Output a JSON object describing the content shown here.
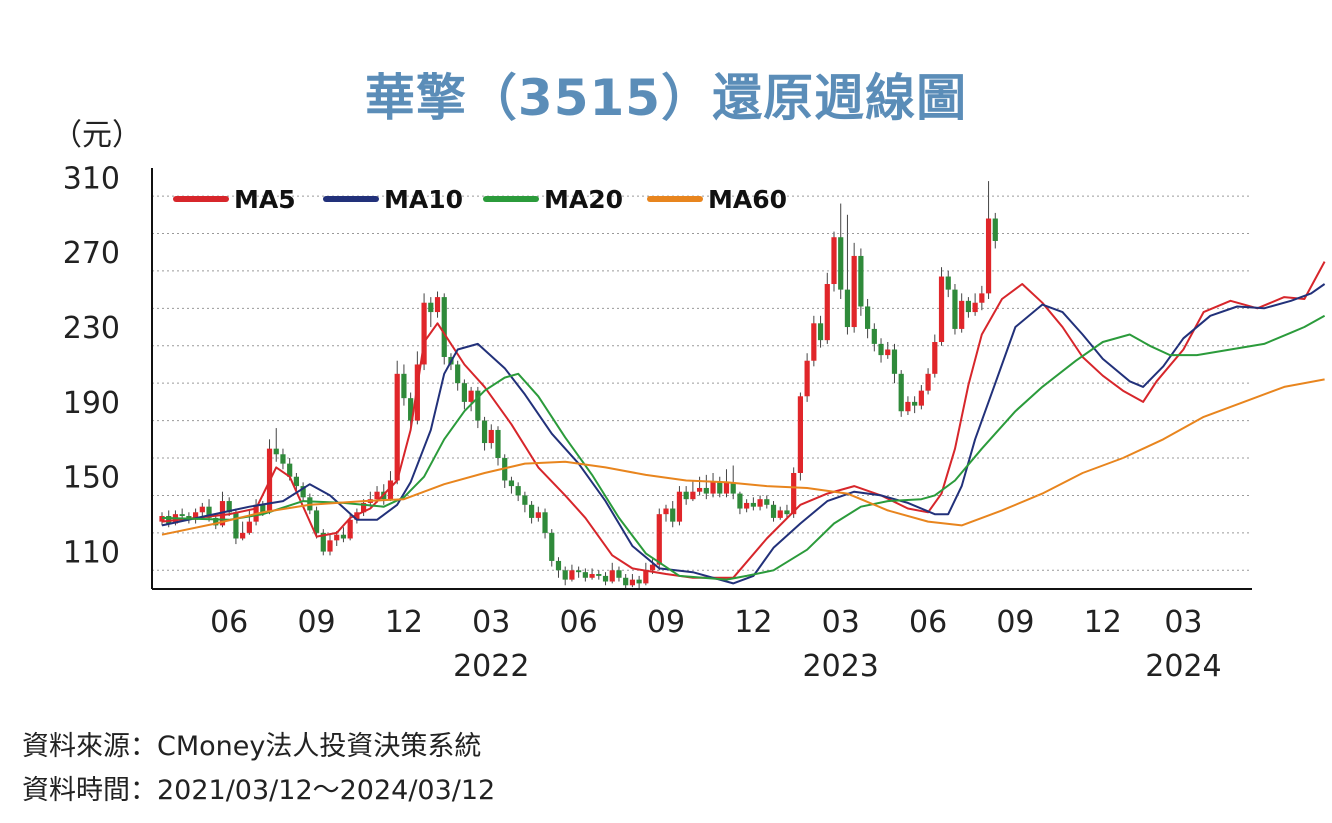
{
  "title": "華擎（3515）還原週線圖",
  "unit_label": "（元）",
  "source_lines": [
    "資料來源：CMoney法人投資決策系統",
    "資料時間：2021/03/12～2024/03/12"
  ],
  "colors": {
    "title": "#5b8db8",
    "up_candle": "#e0262a",
    "down_candle": "#2f8a3a",
    "ma5": "#d7262b",
    "ma10": "#22317a",
    "ma20": "#2b9b3b",
    "ma60": "#e8851e"
  },
  "chart_data": {
    "type": "line",
    "subtype": "candlestick-with-moving-averages",
    "ylim": [
      90,
      315
    ],
    "y_ticks": [
      110,
      150,
      190,
      230,
      270,
      310
    ],
    "grid": "dotted horizontal",
    "legend_placement": "top-left",
    "x_tick_labels": [
      "06",
      "09",
      "12",
      "03",
      "06",
      "09",
      "12",
      "03",
      "06",
      "09",
      "12",
      "03"
    ],
    "x_tick_weeks": [
      10,
      23,
      36,
      49,
      62,
      75,
      88,
      101,
      114,
      127,
      140,
      152
    ],
    "year_labels": [
      {
        "label": "2022",
        "week": 49
      },
      {
        "label": "2023",
        "week": 101
      },
      {
        "label": "2024",
        "week": 152
      }
    ],
    "series": [
      {
        "name": "MA5",
        "key": "ma5",
        "points": [
          [
            0,
            126
          ],
          [
            10,
            130
          ],
          [
            14,
            133
          ],
          [
            17,
            155
          ],
          [
            19,
            150
          ],
          [
            23,
            118
          ],
          [
            26,
            120
          ],
          [
            28,
            128
          ],
          [
            31,
            133
          ],
          [
            35,
            148
          ],
          [
            37,
            175
          ],
          [
            39,
            222
          ],
          [
            41,
            232
          ],
          [
            45,
            210
          ],
          [
            48,
            198
          ],
          [
            52,
            178
          ],
          [
            56,
            155
          ],
          [
            60,
            140
          ],
          [
            63,
            128
          ],
          [
            67,
            108
          ],
          [
            70,
            101
          ],
          [
            75,
            98
          ],
          [
            79,
            96
          ],
          [
            85,
            96
          ],
          [
            90,
            117
          ],
          [
            95,
            135
          ],
          [
            99,
            141
          ],
          [
            103,
            145
          ],
          [
            107,
            140
          ],
          [
            111,
            133
          ],
          [
            114,
            131
          ],
          [
            116,
            141
          ],
          [
            118,
            165
          ],
          [
            120,
            199
          ],
          [
            122,
            226
          ],
          [
            125,
            245
          ],
          [
            128,
            253
          ],
          [
            131,
            243
          ],
          [
            134,
            230
          ],
          [
            137,
            214
          ],
          [
            140,
            204
          ],
          [
            143,
            196
          ],
          [
            146,
            190
          ],
          [
            148,
            201
          ],
          [
            152,
            218
          ],
          [
            155,
            238
          ],
          [
            159,
            244
          ],
          [
            163,
            240
          ],
          [
            167,
            246
          ],
          [
            170,
            245
          ],
          [
            173,
            265
          ]
        ]
      },
      {
        "name": "MA10",
        "key": "ma10",
        "points": [
          [
            0,
            124
          ],
          [
            13,
            134
          ],
          [
            18,
            137
          ],
          [
            22,
            146
          ],
          [
            25,
            140
          ],
          [
            29,
            127
          ],
          [
            32,
            127
          ],
          [
            35,
            135
          ],
          [
            37,
            147
          ],
          [
            40,
            175
          ],
          [
            42,
            205
          ],
          [
            44,
            218
          ],
          [
            47,
            221
          ],
          [
            51,
            208
          ],
          [
            54,
            194
          ],
          [
            58,
            173
          ],
          [
            62,
            157
          ],
          [
            66,
            137
          ],
          [
            70,
            113
          ],
          [
            74,
            101
          ],
          [
            79,
            99
          ],
          [
            85,
            93
          ],
          [
            88,
            97
          ],
          [
            91,
            112
          ],
          [
            95,
            125
          ],
          [
            99,
            137
          ],
          [
            103,
            142
          ],
          [
            107,
            140
          ],
          [
            111,
            136
          ],
          [
            115,
            130
          ],
          [
            117,
            130
          ],
          [
            119,
            145
          ],
          [
            121,
            170
          ],
          [
            124,
            200
          ],
          [
            127,
            230
          ],
          [
            131,
            242
          ],
          [
            134,
            238
          ],
          [
            137,
            226
          ],
          [
            140,
            213
          ],
          [
            144,
            201
          ],
          [
            146,
            198
          ],
          [
            149,
            209
          ],
          [
            152,
            224
          ],
          [
            156,
            236
          ],
          [
            160,
            241
          ],
          [
            164,
            240
          ],
          [
            168,
            244
          ],
          [
            171,
            248
          ],
          [
            173,
            253
          ]
        ]
      },
      {
        "name": "MA20",
        "key": "ma20",
        "points": [
          [
            0,
            128
          ],
          [
            10,
            127
          ],
          [
            15,
            130
          ],
          [
            21,
            137
          ],
          [
            27,
            136
          ],
          [
            33,
            134
          ],
          [
            36,
            139
          ],
          [
            39,
            150
          ],
          [
            42,
            170
          ],
          [
            45,
            185
          ],
          [
            48,
            196
          ],
          [
            51,
            203
          ],
          [
            53,
            205
          ],
          [
            56,
            193
          ],
          [
            60,
            171
          ],
          [
            64,
            151
          ],
          [
            68,
            128
          ],
          [
            72,
            109
          ],
          [
            77,
            97
          ],
          [
            84,
            95
          ],
          [
            87,
            97
          ],
          [
            91,
            100
          ],
          [
            96,
            111
          ],
          [
            100,
            125
          ],
          [
            104,
            134
          ],
          [
            108,
            137
          ],
          [
            113,
            138
          ],
          [
            115,
            140
          ],
          [
            118,
            148
          ],
          [
            122,
            165
          ],
          [
            127,
            185
          ],
          [
            131,
            198
          ],
          [
            136,
            212
          ],
          [
            140,
            222
          ],
          [
            144,
            226
          ],
          [
            147,
            220
          ],
          [
            150,
            215
          ],
          [
            154,
            215
          ],
          [
            159,
            218
          ],
          [
            164,
            221
          ],
          [
            168,
            227
          ],
          [
            170,
            230
          ],
          [
            173,
            236
          ]
        ]
      },
      {
        "name": "MA60",
        "key": "ma60",
        "points": [
          [
            0,
            119
          ],
          [
            8,
            125
          ],
          [
            15,
            131
          ],
          [
            22,
            135
          ],
          [
            30,
            137
          ],
          [
            36,
            138
          ],
          [
            42,
            146
          ],
          [
            48,
            152
          ],
          [
            54,
            157
          ],
          [
            60,
            158
          ],
          [
            66,
            155
          ],
          [
            72,
            151
          ],
          [
            78,
            148
          ],
          [
            84,
            147
          ],
          [
            90,
            145
          ],
          [
            96,
            144
          ],
          [
            102,
            141
          ],
          [
            108,
            132
          ],
          [
            114,
            126
          ],
          [
            119,
            124
          ],
          [
            125,
            132
          ],
          [
            131,
            141
          ],
          [
            137,
            152
          ],
          [
            143,
            160
          ],
          [
            149,
            170
          ],
          [
            155,
            182
          ],
          [
            161,
            190
          ],
          [
            167,
            198
          ],
          [
            173,
            202
          ]
        ]
      }
    ],
    "candles": [
      [
        126,
        129,
        131,
        124
      ],
      [
        129,
        125,
        132,
        123
      ],
      [
        125,
        130,
        132,
        124
      ],
      [
        130,
        129,
        133,
        127
      ],
      [
        129,
        127,
        131,
        125
      ],
      [
        127,
        131,
        133,
        125
      ],
      [
        131,
        134,
        136,
        129
      ],
      [
        134,
        128,
        138,
        126
      ],
      [
        128,
        124,
        130,
        122
      ],
      [
        124,
        137,
        142,
        123
      ],
      [
        137,
        131,
        139,
        129
      ],
      [
        131,
        117,
        133,
        114
      ],
      [
        117,
        120,
        126,
        116
      ],
      [
        120,
        126,
        132,
        119
      ],
      [
        126,
        135,
        138,
        124
      ],
      [
        135,
        131,
        137,
        129
      ],
      [
        131,
        165,
        170,
        130
      ],
      [
        165,
        162,
        176,
        158
      ],
      [
        162,
        157,
        165,
        154
      ],
      [
        157,
        150,
        160,
        148
      ],
      [
        150,
        145,
        152,
        141
      ],
      [
        145,
        139,
        147,
        137
      ],
      [
        139,
        132,
        141,
        130
      ],
      [
        132,
        120,
        134,
        117
      ],
      [
        120,
        110,
        122,
        108
      ],
      [
        110,
        116,
        119,
        108
      ],
      [
        116,
        119,
        121,
        113
      ],
      [
        119,
        117,
        123,
        115
      ],
      [
        117,
        127,
        130,
        116
      ],
      [
        127,
        131,
        133,
        125
      ],
      [
        131,
        136,
        138,
        129
      ],
      [
        136,
        138,
        142,
        134
      ],
      [
        138,
        142,
        145,
        136
      ],
      [
        142,
        138,
        146,
        135
      ],
      [
        138,
        148,
        153,
        137
      ],
      [
        148,
        205,
        212,
        146
      ],
      [
        205,
        192,
        210,
        188
      ],
      [
        192,
        180,
        195,
        176
      ],
      [
        180,
        210,
        217,
        178
      ],
      [
        210,
        243,
        248,
        207
      ],
      [
        243,
        238,
        246,
        230
      ],
      [
        238,
        246,
        249,
        235
      ],
      [
        246,
        214,
        248,
        210
      ],
      [
        214,
        210,
        216,
        207
      ],
      [
        210,
        200,
        212,
        196
      ],
      [
        200,
        190,
        202,
        186
      ],
      [
        190,
        196,
        198,
        185
      ],
      [
        196,
        180,
        198,
        176
      ],
      [
        180,
        168,
        182,
        164
      ],
      [
        168,
        175,
        178,
        165
      ],
      [
        175,
        160,
        177,
        156
      ],
      [
        160,
        148,
        162,
        144
      ],
      [
        148,
        145,
        150,
        141
      ],
      [
        145,
        140,
        147,
        137
      ],
      [
        140,
        135,
        142,
        131
      ],
      [
        135,
        128,
        137,
        125
      ],
      [
        128,
        131,
        134,
        126
      ],
      [
        131,
        120,
        133,
        117
      ],
      [
        120,
        105,
        122,
        102
      ],
      [
        105,
        100,
        107,
        96
      ],
      [
        100,
        95,
        102,
        92
      ],
      [
        95,
        100,
        103,
        94
      ],
      [
        100,
        99,
        102,
        96
      ],
      [
        99,
        96,
        101,
        94
      ],
      [
        96,
        98,
        101,
        95
      ],
      [
        98,
        97,
        100,
        95
      ],
      [
        97,
        94,
        99,
        92
      ],
      [
        94,
        100,
        104,
        93
      ],
      [
        100,
        96,
        102,
        94
      ],
      [
        96,
        92,
        98,
        90
      ],
      [
        92,
        95,
        98,
        91
      ],
      [
        95,
        93,
        97,
        90
      ],
      [
        93,
        100,
        104,
        92
      ],
      [
        100,
        103,
        106,
        98
      ],
      [
        103,
        130,
        133,
        100
      ],
      [
        130,
        133,
        135,
        126
      ],
      [
        133,
        126,
        137,
        123
      ],
      [
        126,
        142,
        145,
        124
      ],
      [
        142,
        138,
        145,
        135
      ],
      [
        138,
        142,
        148,
        137
      ],
      [
        142,
        144,
        150,
        140
      ],
      [
        144,
        141,
        151,
        138
      ],
      [
        141,
        147,
        152,
        139
      ],
      [
        147,
        141,
        150,
        139
      ],
      [
        141,
        147,
        154,
        139
      ],
      [
        147,
        141,
        156,
        138
      ],
      [
        141,
        133,
        142,
        130
      ],
      [
        133,
        136,
        138,
        131
      ],
      [
        136,
        134,
        139,
        132
      ],
      [
        134,
        138,
        140,
        132
      ],
      [
        138,
        135,
        140,
        133
      ],
      [
        135,
        128,
        137,
        126
      ],
      [
        128,
        132,
        134,
        127
      ],
      [
        132,
        130,
        135,
        128
      ],
      [
        130,
        152,
        155,
        128
      ],
      [
        152,
        193,
        195,
        148
      ],
      [
        193,
        212,
        216,
        190
      ],
      [
        212,
        232,
        236,
        209
      ],
      [
        232,
        223,
        236,
        219
      ],
      [
        223,
        253,
        259,
        221
      ],
      [
        253,
        278,
        281,
        249
      ],
      [
        278,
        250,
        296,
        245
      ],
      [
        250,
        230,
        290,
        226
      ],
      [
        230,
        268,
        275,
        227
      ],
      [
        268,
        241,
        272,
        236
      ],
      [
        241,
        229,
        245,
        224
      ],
      [
        229,
        221,
        232,
        217
      ],
      [
        221,
        215,
        224,
        211
      ],
      [
        215,
        218,
        222,
        213
      ],
      [
        218,
        205,
        221,
        200
      ],
      [
        205,
        185,
        207,
        182
      ],
      [
        185,
        190,
        193,
        183
      ],
      [
        190,
        188,
        193,
        184
      ],
      [
        188,
        196,
        199,
        186
      ],
      [
        196,
        205,
        208,
        194
      ],
      [
        205,
        222,
        226,
        203
      ],
      [
        222,
        257,
        262,
        220
      ],
      [
        257,
        250,
        260,
        246
      ],
      [
        250,
        229,
        253,
        226
      ],
      [
        229,
        244,
        248,
        227
      ],
      [
        244,
        238,
        246,
        235
      ],
      [
        238,
        243,
        248,
        236
      ],
      [
        243,
        248,
        252,
        239
      ],
      [
        248,
        288,
        308,
        245
      ],
      [
        288,
        276,
        291,
        272
      ]
    ]
  }
}
